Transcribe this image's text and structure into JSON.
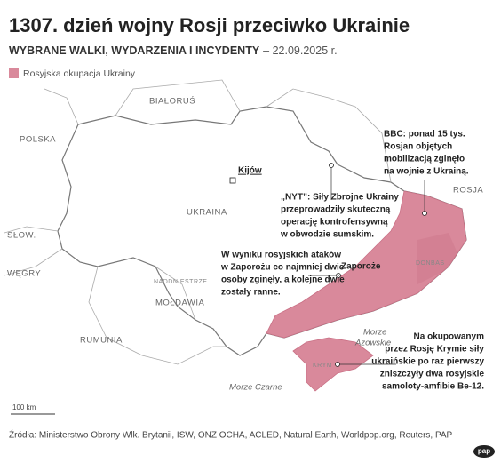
{
  "header": {
    "title": "1307. dzień wojny Rosji przeciwko Ukrainie",
    "subtitle": "WYBRANE WALKI, WYDARZENIA I INCYDENTY",
    "date": "– 22.09.2025 r."
  },
  "legend": {
    "label": "Rosyjska okupacja Ukrainy"
  },
  "map": {
    "countries": [
      "BIAŁORUŚ",
      "POLSKA",
      "UKRAINA",
      "SŁOW.",
      "WĘGRY",
      "MOŁDAWIA",
      "RUMUNIA",
      "ROSJA"
    ],
    "regions": [
      "NADDNIESTRZE",
      "DONBAS",
      "KRYM"
    ],
    "cities": [
      "Kijów",
      "Zaporoże"
    ],
    "seas": [
      [
        "Morze",
        "Azowskie"
      ],
      [
        "Morze Czarne"
      ]
    ],
    "scale": "100 km"
  },
  "annotations": [
    [
      "BBC: ponad 15 tys.",
      "Rosjan objętych",
      "mobilizacją zginęło",
      "na wojnie z Ukrainą."
    ],
    [
      "„NYT”: Siły Zbrojne Ukrainy",
      "przeprowadziły skuteczną",
      "operację kontrofensywną",
      "w obwodzie sumskim."
    ],
    [
      "W wyniku rosyjskich ataków",
      "w Zaporożu co najmniej dwie",
      "osoby zginęły, a kolejne dwie",
      "zostały ranne."
    ],
    [
      "Na okupowanym",
      "przez Rosję Krymie siły",
      "ukraińskie po raz pierwszy",
      "zniszczyły dwa rosyjskie",
      "samoloty-amfibie Be-12."
    ]
  ],
  "footer": {
    "source": "Źródła: Ministerstwo Obrony Wlk. Brytanii, ISW, ONZ OCHA, ACLED, Natural Earth, Worldpop.org, Reuters, PAP",
    "logo": "pap"
  }
}
